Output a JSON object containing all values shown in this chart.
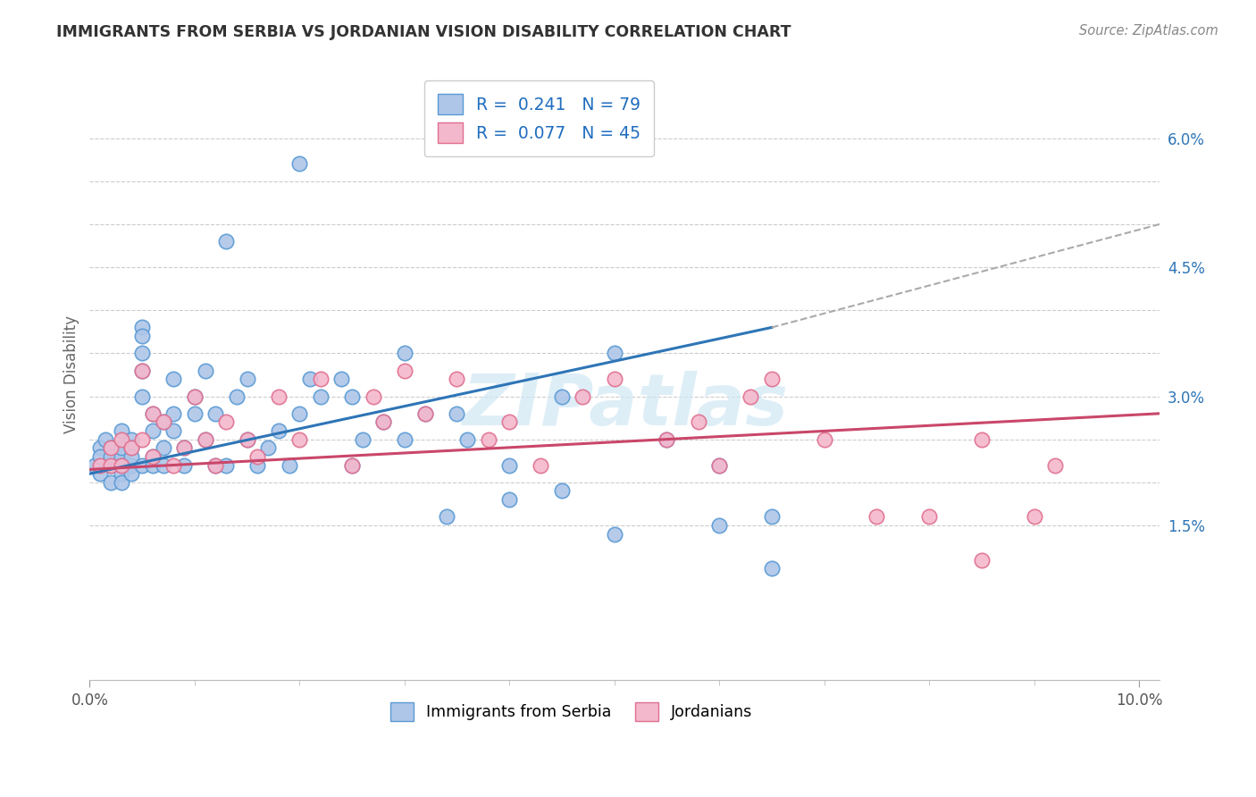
{
  "title": "IMMIGRANTS FROM SERBIA VS JORDANIAN VISION DISABILITY CORRELATION CHART",
  "source": "Source: ZipAtlas.com",
  "ylabel": "Vision Disability",
  "serbia_color": "#aec6e8",
  "serbia_edge": "#5b9bd5",
  "jordan_color": "#f4b8cc",
  "jordan_edge": "#e07090",
  "serbia_line_color": "#2e75b6",
  "jordan_line_color": "#c9476a",
  "dash_color": "#aaaaaa",
  "legend_R_color": "#1f6dbf",
  "legend_N_color": "#c9476a",
  "watermark": "ZIPatlas",
  "watermark_color": "#d0e8f5",
  "serbia_R": 0.241,
  "serbia_N": 79,
  "jordan_R": 0.077,
  "jordan_N": 45,
  "serbia_x": [
    0.0005,
    0.001,
    0.001,
    0.001,
    0.0015,
    0.002,
    0.002,
    0.002,
    0.002,
    0.003,
    0.003,
    0.003,
    0.003,
    0.003,
    0.003,
    0.004,
    0.004,
    0.004,
    0.004,
    0.004,
    0.005,
    0.005,
    0.005,
    0.005,
    0.005,
    0.005,
    0.006,
    0.006,
    0.006,
    0.006,
    0.007,
    0.007,
    0.007,
    0.008,
    0.008,
    0.008,
    0.009,
    0.009,
    0.01,
    0.01,
    0.011,
    0.011,
    0.012,
    0.012,
    0.013,
    0.013,
    0.014,
    0.015,
    0.015,
    0.016,
    0.017,
    0.018,
    0.019,
    0.02,
    0.02,
    0.021,
    0.022,
    0.024,
    0.025,
    0.026,
    0.028,
    0.03,
    0.032,
    0.034,
    0.036,
    0.04,
    0.045,
    0.05,
    0.055,
    0.06,
    0.065,
    0.025,
    0.03,
    0.035,
    0.04,
    0.045,
    0.05,
    0.06,
    0.065
  ],
  "serbia_y": [
    0.022,
    0.024,
    0.021,
    0.023,
    0.025,
    0.022,
    0.024,
    0.02,
    0.023,
    0.026,
    0.023,
    0.022,
    0.024,
    0.021,
    0.02,
    0.025,
    0.022,
    0.024,
    0.021,
    0.023,
    0.038,
    0.037,
    0.035,
    0.033,
    0.03,
    0.022,
    0.028,
    0.026,
    0.023,
    0.022,
    0.027,
    0.024,
    0.022,
    0.032,
    0.028,
    0.026,
    0.024,
    0.022,
    0.03,
    0.028,
    0.033,
    0.025,
    0.028,
    0.022,
    0.048,
    0.022,
    0.03,
    0.032,
    0.025,
    0.022,
    0.024,
    0.026,
    0.022,
    0.028,
    0.057,
    0.032,
    0.03,
    0.032,
    0.03,
    0.025,
    0.027,
    0.025,
    0.028,
    0.016,
    0.025,
    0.018,
    0.03,
    0.035,
    0.025,
    0.022,
    0.016,
    0.022,
    0.035,
    0.028,
    0.022,
    0.019,
    0.014,
    0.015,
    0.01
  ],
  "jordan_x": [
    0.001,
    0.002,
    0.002,
    0.003,
    0.003,
    0.004,
    0.005,
    0.005,
    0.006,
    0.006,
    0.007,
    0.008,
    0.009,
    0.01,
    0.011,
    0.012,
    0.013,
    0.015,
    0.016,
    0.018,
    0.02,
    0.022,
    0.025,
    0.027,
    0.028,
    0.03,
    0.032,
    0.035,
    0.038,
    0.04,
    0.043,
    0.047,
    0.05,
    0.055,
    0.058,
    0.06,
    0.063,
    0.065,
    0.07,
    0.075,
    0.08,
    0.085,
    0.09,
    0.092,
    0.085
  ],
  "jordan_y": [
    0.022,
    0.024,
    0.022,
    0.025,
    0.022,
    0.024,
    0.033,
    0.025,
    0.028,
    0.023,
    0.027,
    0.022,
    0.024,
    0.03,
    0.025,
    0.022,
    0.027,
    0.025,
    0.023,
    0.03,
    0.025,
    0.032,
    0.022,
    0.03,
    0.027,
    0.033,
    0.028,
    0.032,
    0.025,
    0.027,
    0.022,
    0.03,
    0.032,
    0.025,
    0.027,
    0.022,
    0.03,
    0.032,
    0.025,
    0.016,
    0.016,
    0.025,
    0.016,
    0.022,
    0.011
  ],
  "xlim": [
    0.0,
    0.102
  ],
  "ylim": [
    -0.003,
    0.068
  ],
  "ytick_vals": [
    0.015,
    0.02,
    0.025,
    0.03,
    0.035,
    0.04,
    0.045,
    0.05,
    0.055,
    0.06
  ],
  "ytick_labels": [
    "1.5%",
    "",
    "",
    "3.0%",
    "",
    "",
    "4.5%",
    "",
    "",
    "6.0%"
  ],
  "serbia_line": [
    0.0,
    0.021,
    0.065,
    0.038
  ],
  "jordan_line": [
    0.0,
    0.0215,
    0.102,
    0.028
  ],
  "dash_line": [
    0.065,
    0.038,
    0.102,
    0.05
  ]
}
